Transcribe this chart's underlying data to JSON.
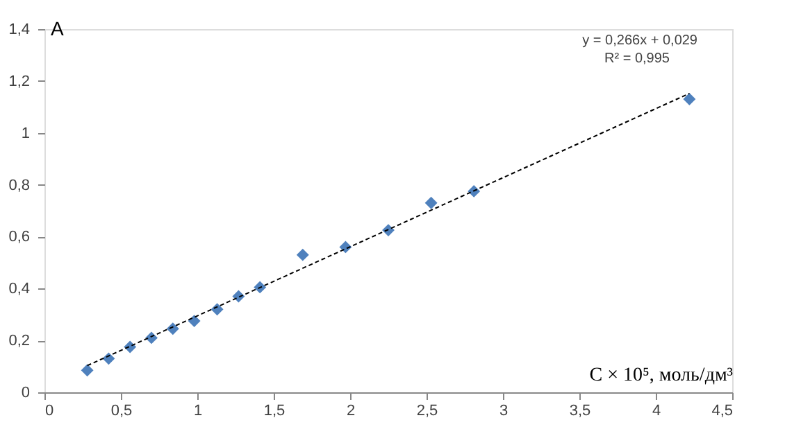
{
  "chart_data": {
    "type": "scatter",
    "xlabel": "C × 10⁵, моль/дм³",
    "ylabel": "A",
    "xlim": [
      0,
      4.5
    ],
    "ylim": [
      0,
      1.4
    ],
    "xticks": [
      0,
      {
        "value": 0.5,
        "label": "0,5"
      },
      1,
      {
        "value": 1.5,
        "label": "1,5"
      },
      2,
      {
        "value": 2.5,
        "label": "2,5"
      },
      3,
      {
        "value": 3.5,
        "label": "3,5"
      },
      4,
      {
        "value": 4.5,
        "label": "4,5"
      }
    ],
    "yticks": [
      0,
      {
        "value": 0.2,
        "label": "0,2"
      },
      {
        "value": 0.4,
        "label": "0,4"
      },
      {
        "value": 0.6,
        "label": "0,6"
      },
      {
        "value": 0.8,
        "label": "0,8"
      },
      1,
      {
        "value": 1.2,
        "label": "1,2"
      },
      {
        "value": 1.4,
        "label": "1,4"
      }
    ],
    "grid": false,
    "series": [
      {
        "type": "scatter",
        "marker": "diamond",
        "color": "#4f81bd",
        "x": [
          0.28,
          0.42,
          0.56,
          0.7,
          0.84,
          0.98,
          1.13,
          1.27,
          1.41,
          1.69,
          1.97,
          2.25,
          2.53,
          2.81,
          4.22
        ],
        "values": [
          0.085,
          0.13,
          0.175,
          0.21,
          0.245,
          0.275,
          0.32,
          0.37,
          0.405,
          0.53,
          0.56,
          0.625,
          0.73,
          0.775,
          1.13
        ]
      },
      {
        "type": "line",
        "line_style": "dashed",
        "color": "#000000",
        "x": [
          0.28,
          4.22
        ],
        "values": [
          0.103,
          1.152
        ]
      }
    ],
    "annotations": [
      "y = 0,266x + 0,029",
      "R² = 0,995"
    ]
  }
}
